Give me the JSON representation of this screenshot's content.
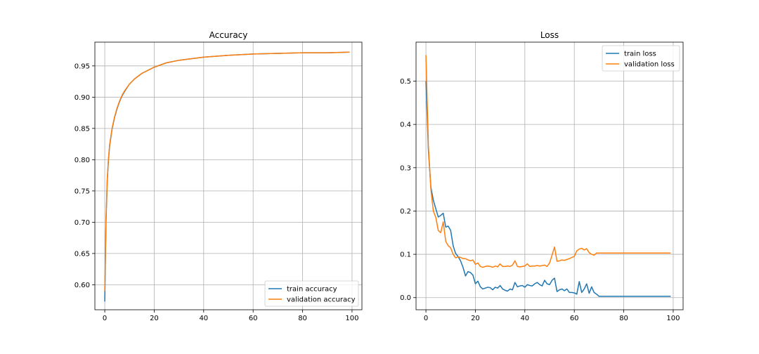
{
  "chart_data": [
    {
      "type": "line",
      "title": "Accuracy",
      "xlabel": "",
      "ylabel": "",
      "xlim": [
        -4,
        104
      ],
      "ylim": [
        0.56,
        0.988
      ],
      "xticks": [
        0,
        20,
        40,
        60,
        80,
        100
      ],
      "yticks": [
        0.6,
        0.65,
        0.7,
        0.75,
        0.8,
        0.85,
        0.9,
        0.95
      ],
      "xtick_labels": [
        "0",
        "20",
        "40",
        "60",
        "80",
        "100"
      ],
      "ytick_labels": [
        "0.60",
        "0.65",
        "0.70",
        "0.75",
        "0.80",
        "0.85",
        "0.90",
        "0.95"
      ],
      "grid": true,
      "legend_position": "lower-right",
      "series": [
        {
          "name": "train accuracy",
          "color": "#1f77b4",
          "x": [
            0,
            0.5,
            1,
            1.5,
            2,
            3,
            4,
            5,
            6,
            7,
            8,
            10,
            12,
            15,
            18,
            20,
            25,
            30,
            40,
            50,
            60,
            70,
            80,
            90,
            99
          ],
          "y": [
            0.573,
            0.7,
            0.765,
            0.8,
            0.823,
            0.85,
            0.868,
            0.882,
            0.893,
            0.902,
            0.909,
            0.921,
            0.929,
            0.938,
            0.944,
            0.948,
            0.955,
            0.959,
            0.964,
            0.967,
            0.969,
            0.97,
            0.971,
            0.971,
            0.972
          ]
        },
        {
          "name": "validation accuracy",
          "color": "#ff7f0e",
          "x": [
            0,
            0.5,
            1,
            1.5,
            2,
            3,
            4,
            5,
            6,
            7,
            8,
            10,
            12,
            15,
            18,
            20,
            25,
            30,
            40,
            50,
            60,
            70,
            80,
            90,
            99
          ],
          "y": [
            0.59,
            0.705,
            0.768,
            0.802,
            0.825,
            0.851,
            0.869,
            0.883,
            0.894,
            0.903,
            0.91,
            0.921,
            0.929,
            0.938,
            0.944,
            0.948,
            0.955,
            0.959,
            0.964,
            0.967,
            0.969,
            0.97,
            0.971,
            0.971,
            0.972
          ]
        }
      ]
    },
    {
      "type": "line",
      "title": "Loss",
      "xlabel": "",
      "ylabel": "",
      "xlim": [
        -4,
        104
      ],
      "ylim": [
        -0.028,
        0.59
      ],
      "xticks": [
        0,
        20,
        40,
        60,
        80,
        100
      ],
      "yticks": [
        0.0,
        0.1,
        0.2,
        0.3,
        0.4,
        0.5
      ],
      "xtick_labels": [
        "0",
        "20",
        "40",
        "60",
        "80",
        "100"
      ],
      "ytick_labels": [
        "0.0",
        "0.1",
        "0.2",
        "0.3",
        "0.4",
        "0.5"
      ],
      "grid": true,
      "legend_position": "upper-right",
      "series": [
        {
          "name": "train loss",
          "color": "#1f77b4",
          "x": [
            0,
            1,
            2,
            3,
            4,
            5,
            6,
            7,
            8,
            9,
            10,
            11,
            12,
            13,
            14,
            15,
            16,
            17,
            18,
            19,
            20,
            21,
            22,
            23,
            24,
            25,
            26,
            27,
            28,
            29,
            30,
            31,
            32,
            33,
            34,
            35,
            36,
            37,
            38,
            39,
            40,
            41,
            42,
            43,
            44,
            45,
            46,
            47,
            48,
            49,
            50,
            51,
            52,
            53,
            54,
            55,
            56,
            57,
            58,
            59,
            60,
            61,
            62,
            63,
            64,
            65,
            66,
            67,
            68,
            69,
            70,
            71,
            72,
            73,
            74,
            75,
            76,
            77,
            78,
            79,
            80,
            81,
            82,
            83,
            84,
            85,
            86,
            87,
            88,
            89,
            90,
            91,
            92,
            93,
            94,
            95,
            96,
            97,
            98,
            99
          ],
          "y": [
            0.5,
            0.34,
            0.255,
            0.225,
            0.205,
            0.186,
            0.19,
            0.195,
            0.163,
            0.165,
            0.155,
            0.12,
            0.102,
            0.095,
            0.085,
            0.07,
            0.05,
            0.06,
            0.058,
            0.052,
            0.032,
            0.038,
            0.025,
            0.02,
            0.022,
            0.024,
            0.023,
            0.018,
            0.024,
            0.022,
            0.028,
            0.02,
            0.017,
            0.015,
            0.02,
            0.018,
            0.035,
            0.025,
            0.027,
            0.028,
            0.024,
            0.03,
            0.028,
            0.027,
            0.032,
            0.035,
            0.03,
            0.027,
            0.04,
            0.032,
            0.03,
            0.04,
            0.045,
            0.014,
            0.018,
            0.02,
            0.016,
            0.02,
            0.012,
            0.012,
            0.011,
            0.008,
            0.037,
            0.012,
            0.02,
            0.032,
            0.01,
            0.025,
            0.012,
            0.008,
            0.003,
            0.003,
            0.003,
            0.003,
            0.003,
            0.003,
            0.003,
            0.003,
            0.003,
            0.003,
            0.003,
            0.003,
            0.003,
            0.003,
            0.003,
            0.003,
            0.003,
            0.003,
            0.003,
            0.003,
            0.003,
            0.003,
            0.003,
            0.003,
            0.003,
            0.003,
            0.003,
            0.003,
            0.003,
            0.003
          ]
        },
        {
          "name": "validation loss",
          "color": "#ff7f0e",
          "x": [
            0,
            1,
            2,
            3,
            4,
            5,
            6,
            7,
            8,
            9,
            10,
            11,
            12,
            13,
            14,
            15,
            16,
            17,
            18,
            19,
            20,
            21,
            22,
            23,
            24,
            25,
            26,
            27,
            28,
            29,
            30,
            31,
            32,
            33,
            34,
            35,
            36,
            37,
            38,
            39,
            40,
            41,
            42,
            43,
            44,
            45,
            46,
            47,
            48,
            49,
            50,
            51,
            52,
            53,
            54,
            55,
            56,
            57,
            58,
            59,
            60,
            61,
            62,
            63,
            64,
            65,
            66,
            67,
            68,
            69,
            70,
            71,
            72,
            73,
            74,
            75,
            76,
            77,
            78,
            79,
            80,
            81,
            82,
            83,
            84,
            85,
            86,
            87,
            88,
            89,
            90,
            91,
            92,
            93,
            94,
            95,
            96,
            97,
            98,
            99
          ],
          "y": [
            0.56,
            0.35,
            0.25,
            0.2,
            0.185,
            0.155,
            0.15,
            0.175,
            0.13,
            0.12,
            0.115,
            0.1,
            0.092,
            0.094,
            0.093,
            0.09,
            0.09,
            0.087,
            0.085,
            0.087,
            0.077,
            0.08,
            0.072,
            0.07,
            0.072,
            0.073,
            0.072,
            0.07,
            0.073,
            0.071,
            0.078,
            0.072,
            0.072,
            0.073,
            0.072,
            0.075,
            0.085,
            0.072,
            0.071,
            0.072,
            0.073,
            0.078,
            0.072,
            0.073,
            0.073,
            0.074,
            0.073,
            0.074,
            0.075,
            0.072,
            0.08,
            0.098,
            0.117,
            0.084,
            0.085,
            0.087,
            0.086,
            0.088,
            0.09,
            0.093,
            0.095,
            0.108,
            0.112,
            0.114,
            0.11,
            0.113,
            0.104,
            0.1,
            0.098,
            0.103,
            0.103,
            0.103,
            0.103,
            0.103,
            0.103,
            0.103,
            0.103,
            0.103,
            0.103,
            0.103,
            0.103,
            0.103,
            0.103,
            0.103,
            0.103,
            0.103,
            0.103,
            0.103,
            0.103,
            0.103,
            0.103,
            0.103,
            0.103,
            0.103,
            0.103,
            0.103,
            0.103,
            0.103,
            0.103,
            0.103
          ]
        }
      ]
    }
  ]
}
